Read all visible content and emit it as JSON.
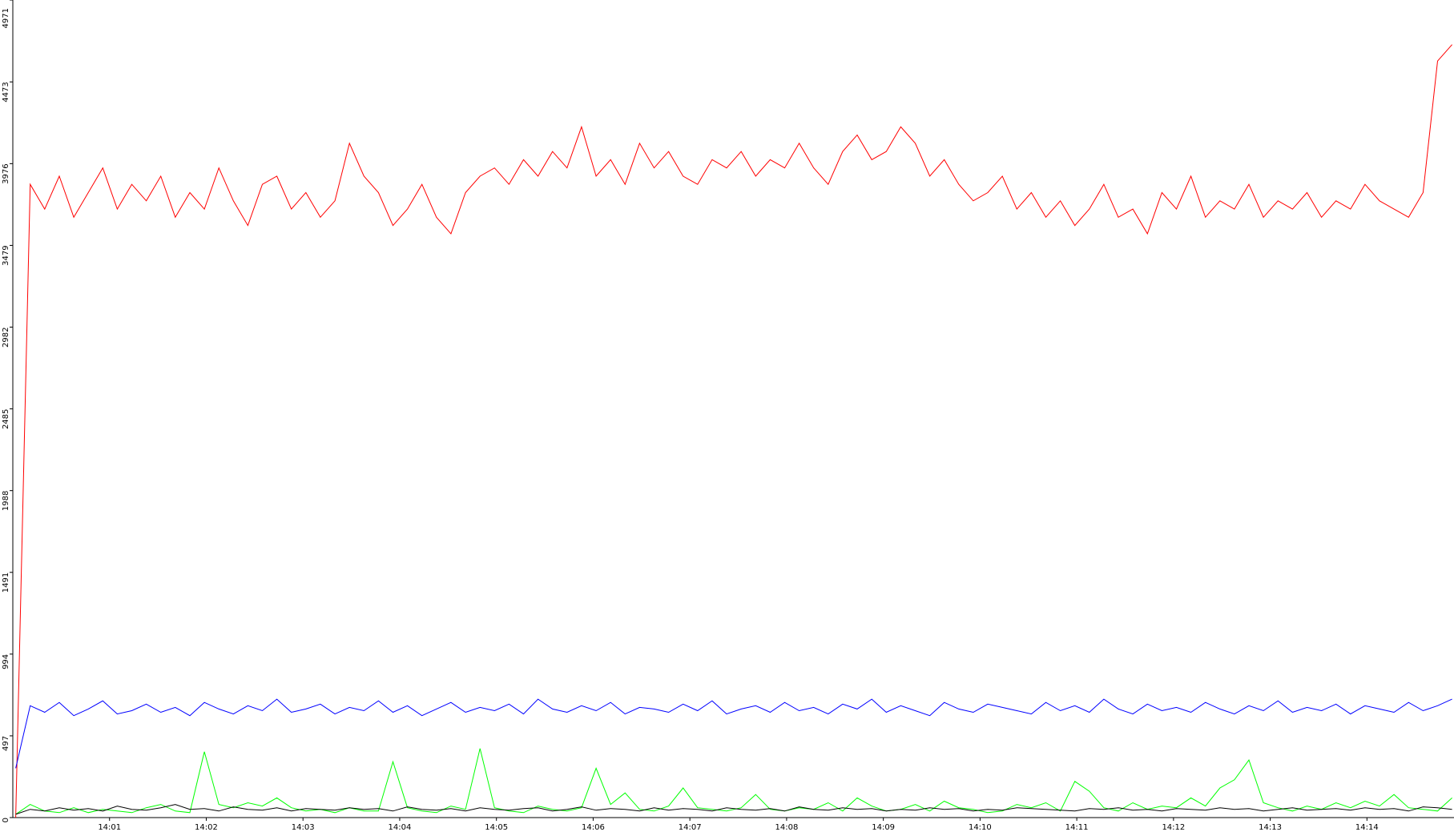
{
  "chart_data": {
    "type": "line",
    "xlim": [
      0,
      14.9
    ],
    "xticks": [
      {
        "value": 1,
        "label": "14:01"
      },
      {
        "value": 2,
        "label": "14:02"
      },
      {
        "value": 3,
        "label": "14:03"
      },
      {
        "value": 4,
        "label": "14:04"
      },
      {
        "value": 5,
        "label": "14:05"
      },
      {
        "value": 6,
        "label": "14:06"
      },
      {
        "value": 7,
        "label": "14:07"
      },
      {
        "value": 8,
        "label": "14:08"
      },
      {
        "value": 9,
        "label": "14:09"
      },
      {
        "value": 10,
        "label": "14:10"
      },
      {
        "value": 11,
        "label": "14:11"
      },
      {
        "value": 12,
        "label": "14:12"
      },
      {
        "value": 13,
        "label": "14:13"
      },
      {
        "value": 14,
        "label": "14:14"
      }
    ],
    "ylim": [
      0,
      4971
    ],
    "yticks": [
      0,
      497,
      994,
      1491,
      1988,
      2485,
      2982,
      3479,
      3976,
      4473,
      4971
    ],
    "x": [
      0.03,
      0.18,
      0.33,
      0.48,
      0.63,
      0.78,
      0.93,
      1.08,
      1.23,
      1.38,
      1.53,
      1.68,
      1.83,
      1.98,
      2.13,
      2.28,
      2.43,
      2.58,
      2.73,
      2.88,
      3.03,
      3.18,
      3.33,
      3.48,
      3.63,
      3.78,
      3.93,
      4.08,
      4.23,
      4.38,
      4.53,
      4.68,
      4.83,
      4.98,
      5.13,
      5.28,
      5.43,
      5.58,
      5.73,
      5.88,
      6.03,
      6.18,
      6.33,
      6.48,
      6.63,
      6.78,
      6.93,
      7.08,
      7.23,
      7.38,
      7.53,
      7.68,
      7.83,
      7.98,
      8.13,
      8.28,
      8.43,
      8.58,
      8.73,
      8.88,
      9.03,
      9.18,
      9.33,
      9.48,
      9.63,
      9.78,
      9.93,
      10.08,
      10.23,
      10.38,
      10.53,
      10.68,
      10.83,
      10.98,
      11.13,
      11.28,
      11.43,
      11.58,
      11.73,
      11.88,
      12.03,
      12.18,
      12.33,
      12.48,
      12.63,
      12.78,
      12.93,
      13.08,
      13.23,
      13.38,
      13.53,
      13.68,
      13.83,
      13.98,
      14.13,
      14.28,
      14.43,
      14.58,
      14.73,
      14.88
    ],
    "series": [
      {
        "color": "#ff0000",
        "values": [
          0,
          3850,
          3700,
          3900,
          3650,
          3800,
          3950,
          3700,
          3850,
          3750,
          3900,
          3650,
          3800,
          3700,
          3950,
          3750,
          3600,
          3850,
          3900,
          3700,
          3800,
          3650,
          3750,
          4100,
          3900,
          3800,
          3600,
          3700,
          3850,
          3650,
          3550,
          3800,
          3900,
          3950,
          3850,
          4000,
          3900,
          4050,
          3950,
          4200,
          3900,
          4000,
          3850,
          4100,
          3950,
          4050,
          3900,
          3850,
          4000,
          3950,
          4050,
          3900,
          4000,
          3950,
          4100,
          3950,
          3850,
          4050,
          4150,
          4000,
          4050,
          4200,
          4100,
          3900,
          4000,
          3850,
          3750,
          3800,
          3900,
          3700,
          3800,
          3650,
          3750,
          3600,
          3700,
          3850,
          3650,
          3700,
          3550,
          3800,
          3700,
          3900,
          3650,
          3750,
          3700,
          3850,
          3650,
          3750,
          3700,
          3800,
          3650,
          3750,
          3700,
          3850,
          3750,
          3700,
          3650,
          3800,
          4600,
          4700
        ]
      },
      {
        "color": "#0000ff",
        "values": [
          300,
          680,
          640,
          700,
          620,
          660,
          710,
          630,
          650,
          690,
          640,
          670,
          620,
          700,
          660,
          630,
          680,
          650,
          720,
          640,
          660,
          690,
          630,
          670,
          650,
          710,
          640,
          680,
          620,
          660,
          700,
          640,
          670,
          650,
          690,
          630,
          720,
          660,
          640,
          680,
          650,
          700,
          630,
          670,
          660,
          640,
          690,
          650,
          710,
          630,
          660,
          680,
          640,
          700,
          650,
          670,
          630,
          690,
          660,
          720,
          640,
          680,
          650,
          620,
          700,
          660,
          640,
          690,
          670,
          650,
          630,
          700,
          650,
          680,
          640,
          720,
          660,
          630,
          690,
          650,
          670,
          640,
          700,
          660,
          630,
          680,
          650,
          710,
          640,
          670,
          650,
          690,
          630,
          680,
          660,
          640,
          700,
          650,
          680,
          720
        ]
      },
      {
        "color": "#00ff00",
        "values": [
          20,
          80,
          40,
          30,
          60,
          30,
          50,
          40,
          30,
          60,
          80,
          40,
          30,
          400,
          80,
          60,
          90,
          70,
          120,
          60,
          40,
          50,
          30,
          60,
          40,
          40,
          340,
          60,
          40,
          30,
          70,
          50,
          420,
          60,
          40,
          30,
          70,
          50,
          40,
          60,
          300,
          80,
          150,
          50,
          40,
          70,
          180,
          60,
          50,
          40,
          60,
          140,
          50,
          40,
          60,
          50,
          90,
          40,
          120,
          70,
          40,
          50,
          80,
          40,
          100,
          60,
          50,
          30,
          40,
          80,
          60,
          90,
          40,
          220,
          160,
          60,
          40,
          90,
          50,
          70,
          60,
          120,
          70,
          180,
          230,
          350,
          90,
          60,
          40,
          70,
          50,
          90,
          60,
          100,
          70,
          140,
          60,
          50,
          40,
          120
        ]
      },
      {
        "color": "#000000",
        "values": [
          20,
          50,
          40,
          60,
          45,
          55,
          40,
          70,
          50,
          45,
          60,
          80,
          50,
          55,
          40,
          65,
          50,
          45,
          60,
          40,
          55,
          50,
          45,
          60,
          50,
          55,
          40,
          65,
          50,
          45,
          55,
          40,
          60,
          50,
          45,
          55,
          60,
          40,
          50,
          65,
          45,
          55,
          50,
          40,
          60,
          45,
          55,
          50,
          40,
          60,
          50,
          45,
          55,
          40,
          65,
          50,
          45,
          60,
          50,
          55,
          40,
          50,
          45,
          60,
          50,
          55,
          40,
          50,
          45,
          60,
          55,
          50,
          45,
          40,
          55,
          50,
          60,
          45,
          50,
          40,
          55,
          50,
          45,
          60,
          50,
          55,
          40,
          50,
          60,
          45,
          50,
          55,
          45,
          60,
          50,
          55,
          40,
          65,
          60,
          50
        ]
      }
    ]
  }
}
